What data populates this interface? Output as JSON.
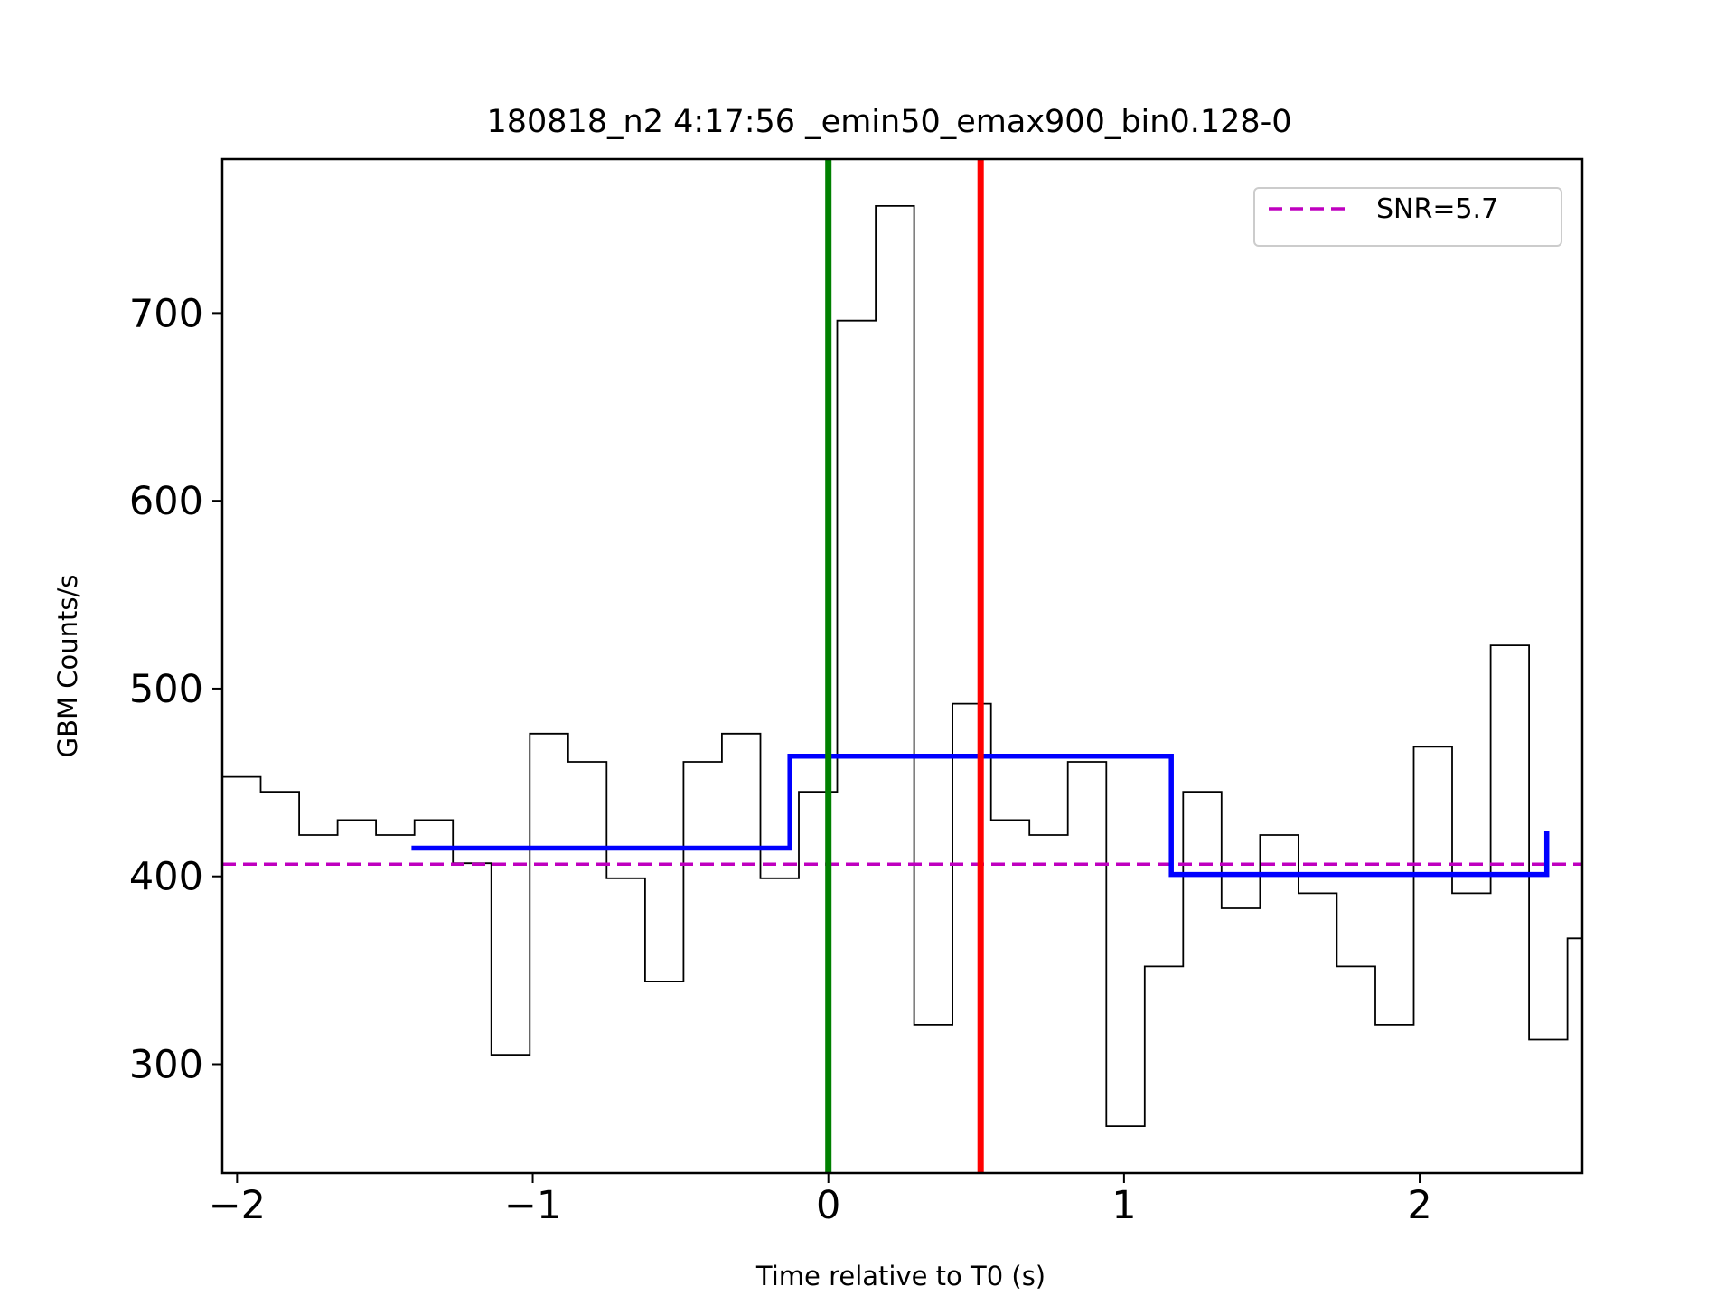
{
  "chart_data": {
    "type": "line",
    "title": "180818_n2 4:17:56 _emin50_emax900_bin0.128-0",
    "xlabel": "Time relative to T0 (s)",
    "ylabel": "GBM Counts/s",
    "xlim": [
      -2.05,
      2.55
    ],
    "ylim": [
      242,
      782
    ],
    "xticks": [
      {
        "value": -2,
        "label": "−2"
      },
      {
        "value": -1,
        "label": "−1"
      },
      {
        "value": 0,
        "label": "0"
      },
      {
        "value": 1,
        "label": "1"
      },
      {
        "value": 2,
        "label": "2"
      }
    ],
    "yticks": [
      {
        "value": 300,
        "label": "300"
      },
      {
        "value": 400,
        "label": "400"
      },
      {
        "value": 500,
        "label": "500"
      },
      {
        "value": 600,
        "label": "600"
      },
      {
        "value": 700,
        "label": "700"
      }
    ],
    "grid": false,
    "legend": {
      "position": "top-right",
      "entries": [
        "SNR=5.7"
      ]
    },
    "series": [
      {
        "kind": "histogram",
        "color": "#000000",
        "bin_edges": [
          -2.05,
          -1.92,
          -1.79,
          -1.66,
          -1.53,
          -1.4,
          -1.27,
          -1.14,
          -1.01,
          -0.88,
          -0.75,
          -0.62,
          -0.49,
          -0.36,
          -0.23,
          -0.1,
          0.03,
          0.16,
          0.29,
          0.42,
          0.55,
          0.68,
          0.81,
          0.94,
          1.07,
          1.2,
          1.33,
          1.46,
          1.59,
          1.72,
          1.85,
          1.98,
          2.11,
          2.24,
          2.37,
          2.5,
          2.55
        ],
        "values": [
          453,
          445,
          422,
          430,
          422,
          430,
          407,
          305,
          476,
          461,
          399,
          344,
          461,
          476,
          399,
          445,
          696,
          757,
          321,
          492,
          430,
          422,
          461,
          267,
          352,
          445,
          383,
          422,
          391,
          352,
          321,
          469,
          391,
          523,
          313,
          367
        ]
      },
      {
        "kind": "step",
        "color": "#0000ff",
        "x": [
          -1.41,
          -0.13,
          -0.13,
          1.16,
          1.16,
          2.43,
          2.43
        ],
        "y": [
          415,
          415,
          464,
          464,
          401,
          401,
          424
        ]
      },
      {
        "kind": "hline",
        "name": "SNR=5.7",
        "color": "#bf00bf",
        "style": "dashed",
        "y": 406.5
      },
      {
        "kind": "vline",
        "color": "#008000",
        "x": 0.0
      },
      {
        "kind": "vline",
        "color": "#ff0000",
        "x": 0.515
      }
    ]
  }
}
